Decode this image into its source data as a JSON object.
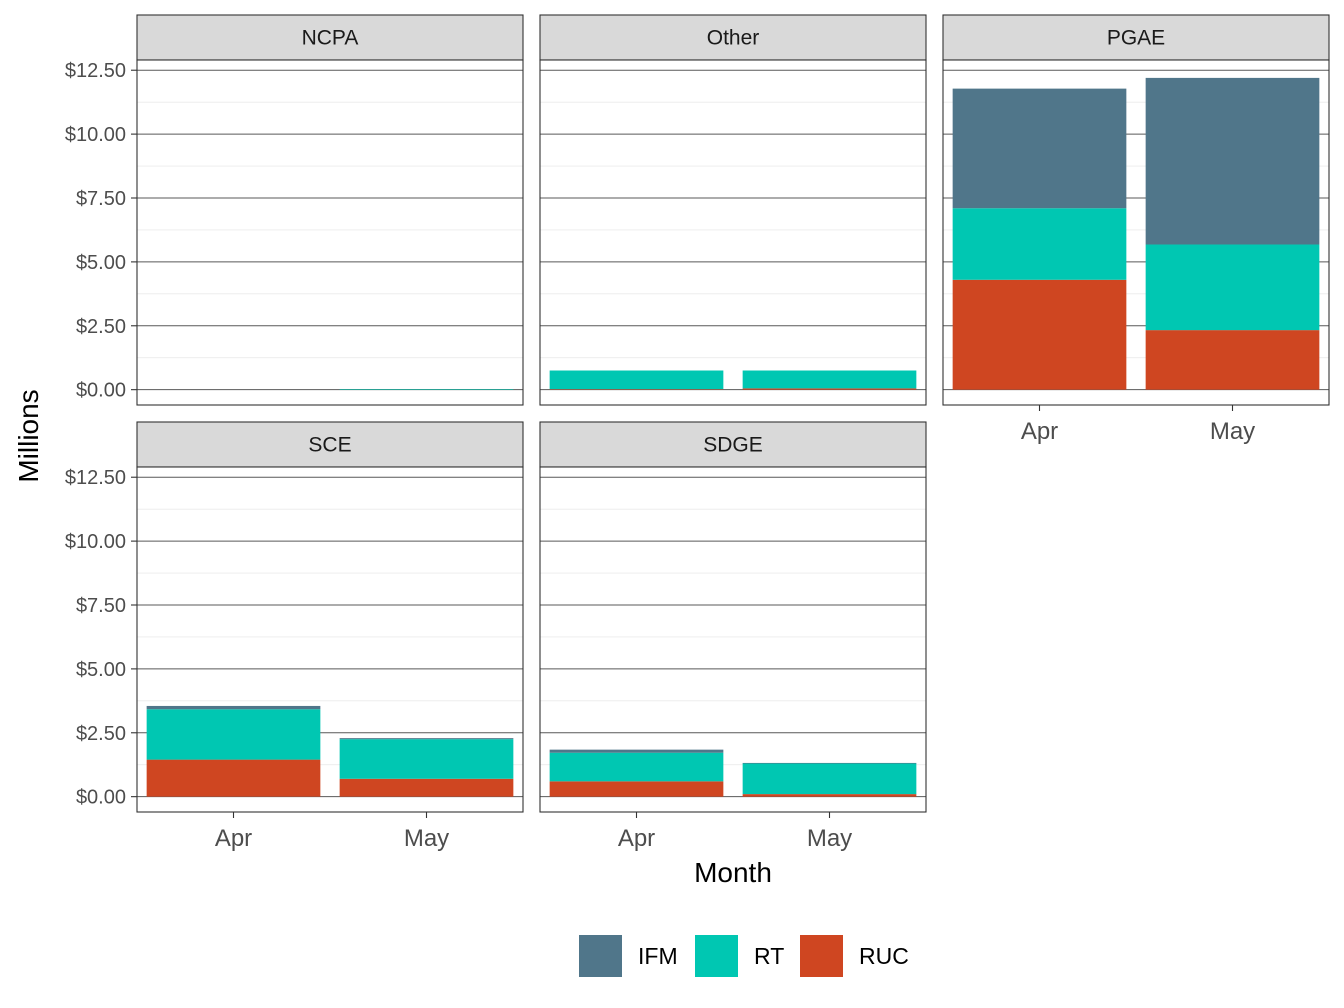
{
  "chart_data": {
    "type": "bar",
    "stacked": true,
    "faceted": true,
    "xlabel": "Month",
    "ylabel": "Millions",
    "ylim": [
      -0.6,
      12.9
    ],
    "y_ticks": [
      0,
      2.5,
      5,
      7.5,
      10,
      12.5
    ],
    "y_tick_labels": [
      "$0.00",
      "$2.50",
      "$5.00",
      "$7.50",
      "$10.00",
      "$12.50"
    ],
    "categories": [
      "Apr",
      "May"
    ],
    "grid": true,
    "legend_position": "bottom",
    "stack_order_bottom_to_top": [
      "RUC",
      "RT",
      "IFM"
    ],
    "series_colors": {
      "IFM": "#50768a",
      "RT": "#00c7b2",
      "RUC": "#cf4621"
    },
    "legend": [
      "IFM",
      "RT",
      "RUC"
    ],
    "facets": [
      {
        "name": "NCPA",
        "series": [
          {
            "name": "RUC",
            "values": [
              0,
              0
            ]
          },
          {
            "name": "RT",
            "values": [
              0,
              0.02
            ]
          },
          {
            "name": "IFM",
            "values": [
              0,
              0
            ]
          }
        ]
      },
      {
        "name": "Other",
        "series": [
          {
            "name": "RUC",
            "values": [
              0.02,
              0.05
            ]
          },
          {
            "name": "RT",
            "values": [
              0.73,
              0.7
            ]
          },
          {
            "name": "IFM",
            "values": [
              0,
              0
            ]
          }
        ]
      },
      {
        "name": "PGAE",
        "series": [
          {
            "name": "RUC",
            "values": [
              4.3,
              2.33
            ]
          },
          {
            "name": "RT",
            "values": [
              2.8,
              3.35
            ]
          },
          {
            "name": "IFM",
            "values": [
              4.68,
              6.52
            ]
          }
        ]
      },
      {
        "name": "SCE",
        "series": [
          {
            "name": "RUC",
            "values": [
              1.45,
              0.7
            ]
          },
          {
            "name": "RT",
            "values": [
              1.97,
              1.55
            ]
          },
          {
            "name": "IFM",
            "values": [
              0.13,
              0.04
            ]
          }
        ]
      },
      {
        "name": "SDGE",
        "series": [
          {
            "name": "RUC",
            "values": [
              0.6,
              0.1
            ]
          },
          {
            "name": "RT",
            "values": [
              1.12,
              1.2
            ]
          },
          {
            "name": "IFM",
            "values": [
              0.12,
              0.02
            ]
          }
        ]
      }
    ]
  }
}
